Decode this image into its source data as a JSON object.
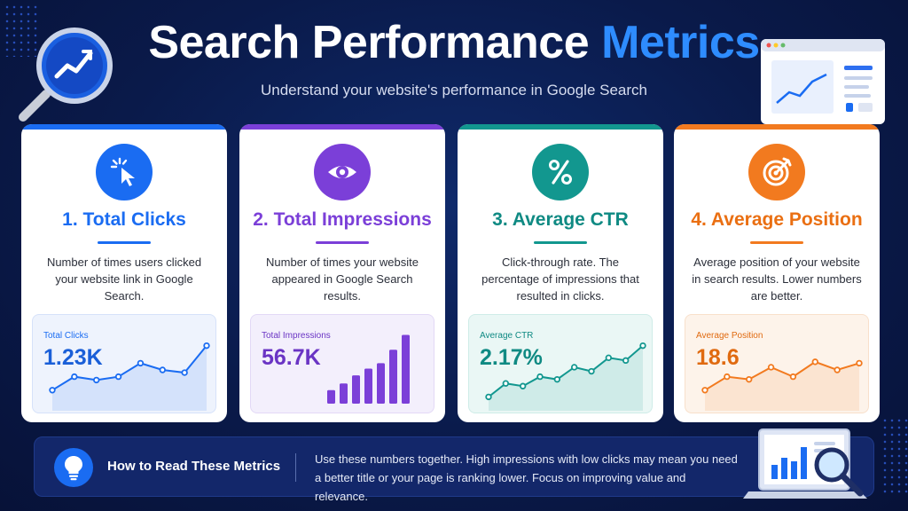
{
  "header": {
    "title_main": "Search Performance ",
    "title_accent": "Metrics",
    "subtitle": "Understand your website's performance in Google Search"
  },
  "colors": {
    "blue": "#1a6cf2",
    "purple": "#7b3fd8",
    "teal": "#12978f",
    "orange": "#f27a1f",
    "accent": "#2e8cff"
  },
  "cards": [
    {
      "title": "1. Total Clicks",
      "description": "Number of times users clicked your website link in Google Search.",
      "icon": "cursor-click-icon",
      "chart_label": "Total Clicks",
      "chart_value": "1.23K"
    },
    {
      "title": "2. Total Impressions",
      "description": "Number of times your website appeared in Google Search results.",
      "icon": "eye-icon",
      "chart_label": "Total Impressions",
      "chart_value": "56.7K"
    },
    {
      "title": "3. Average CTR",
      "description": "Click-through rate. The percentage of impressions that resulted in clicks.",
      "icon": "percent-icon",
      "chart_label": "Average CTR",
      "chart_value": "2.17%"
    },
    {
      "title": "4. Average Position",
      "description": "Average position of your website in search results. Lower numbers are better.",
      "icon": "target-icon",
      "chart_label": "Average Position",
      "chart_value": "18.6"
    }
  ],
  "footer": {
    "title": "How to Read These Metrics",
    "text": "Use these numbers together. High impressions with low clicks may mean you need a better title or your page is ranking lower. Focus on improving value and relevance."
  },
  "chart_data": [
    {
      "type": "area",
      "name": "Total Clicks",
      "values": [
        2,
        4,
        3.5,
        4,
        6,
        5,
        4.6,
        8.6
      ]
    },
    {
      "type": "bar",
      "name": "Total Impressions",
      "values": [
        2,
        3,
        4.2,
        5.2,
        6,
        8,
        10.2
      ]
    },
    {
      "type": "area",
      "name": "Average CTR",
      "values": [
        1,
        3,
        2.6,
        4,
        3.6,
        5.4,
        4.8,
        6.8,
        6.4,
        8.6
      ]
    },
    {
      "type": "area",
      "name": "Average Position",
      "values": [
        2,
        4,
        3.6,
        5.4,
        4,
        6.2,
        5,
        6
      ]
    }
  ]
}
